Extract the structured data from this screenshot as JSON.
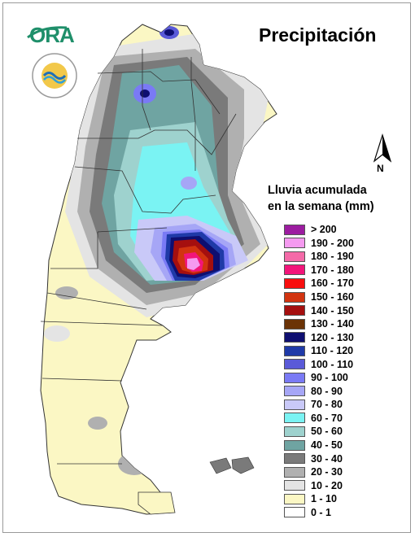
{
  "header": {
    "title": "Precipitación",
    "logo_text": "ORA",
    "seal_text": "ARGENTINA"
  },
  "compass": {
    "label": "N"
  },
  "legend": {
    "title_line1": "Lluvia acumulada",
    "title_line2": "en la semana (mm)",
    "items": [
      {
        "label": "> 200",
        "color": "#9c1ca0"
      },
      {
        "label": "190 - 200",
        "color": "#f59af0"
      },
      {
        "label": "180 - 190",
        "color": "#f46aa8"
      },
      {
        "label": "170 - 180",
        "color": "#f2157a"
      },
      {
        "label": "160 - 170",
        "color": "#f80e0e"
      },
      {
        "label": "150 - 160",
        "color": "#d23410"
      },
      {
        "label": "140 - 150",
        "color": "#a50f0f"
      },
      {
        "label": "130 - 140",
        "color": "#6b3306"
      },
      {
        "label": "120 - 130",
        "color": "#0e0e70"
      },
      {
        "label": "110 - 120",
        "color": "#1f3aa8"
      },
      {
        "label": "100 - 110",
        "color": "#5a5ad8"
      },
      {
        "label": "90 - 100",
        "color": "#7a7af5"
      },
      {
        "label": "80 - 90",
        "color": "#a6a6f6"
      },
      {
        "label": "70 - 80",
        "color": "#c9c9f8"
      },
      {
        "label": "60 - 70",
        "color": "#7af3f3"
      },
      {
        "label": "50 - 60",
        "color": "#9ed2ce"
      },
      {
        "label": "40 - 50",
        "color": "#6fa4a2"
      },
      {
        "label": "30 - 40",
        "color": "#7a7a7a"
      },
      {
        "label": "20 - 30",
        "color": "#b0b0b0"
      },
      {
        "label": "10 - 20",
        "color": "#e4e4e4"
      },
      {
        "label": "1 - 10",
        "color": "#fbf7c4"
      },
      {
        "label": "0 - 1",
        "color": "#ffffff"
      }
    ]
  }
}
